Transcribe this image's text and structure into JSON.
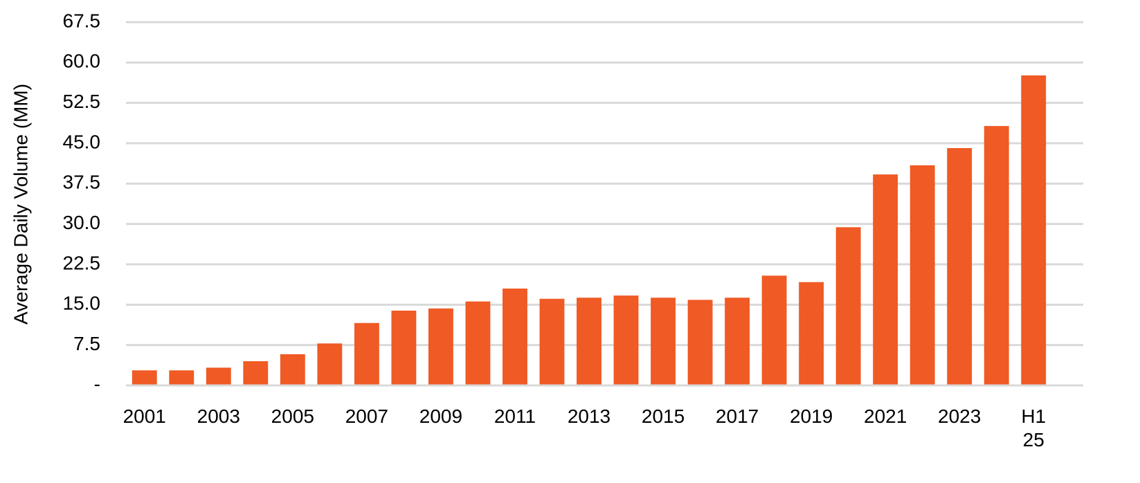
{
  "chart_data": {
    "type": "bar",
    "y_label": "Average Daily Volume (MM)",
    "categories": [
      "2001",
      null,
      "2003",
      null,
      "2005",
      null,
      "2007",
      null,
      "2009",
      null,
      "2011",
      null,
      "2013",
      null,
      "2015",
      null,
      "2017",
      null,
      "2019",
      null,
      "2021",
      null,
      "2023",
      null,
      "H1 25"
    ],
    "values": [
      2.8,
      2.8,
      3.3,
      4.5,
      5.8,
      7.8,
      11.6,
      13.9,
      14.3,
      15.6,
      18.0,
      16.1,
      16.3,
      16.7,
      16.3,
      15.9,
      16.3,
      20.4,
      19.2,
      29.4,
      39.2,
      40.9,
      44.1,
      48.2,
      57.6
    ],
    "color": "#f05a24",
    "ylim": [
      0,
      67.5
    ],
    "yticks": [
      {
        "value": 0,
        "label": "-"
      },
      7.5,
      {
        "value": 15,
        "label": "15.0"
      },
      22.5,
      {
        "value": 30,
        "label": "30.0"
      },
      37.5,
      {
        "value": 45,
        "label": "45.0"
      },
      52.5,
      {
        "value": 60,
        "label": "60.0"
      },
      67.5
    ],
    "grid": true
  }
}
